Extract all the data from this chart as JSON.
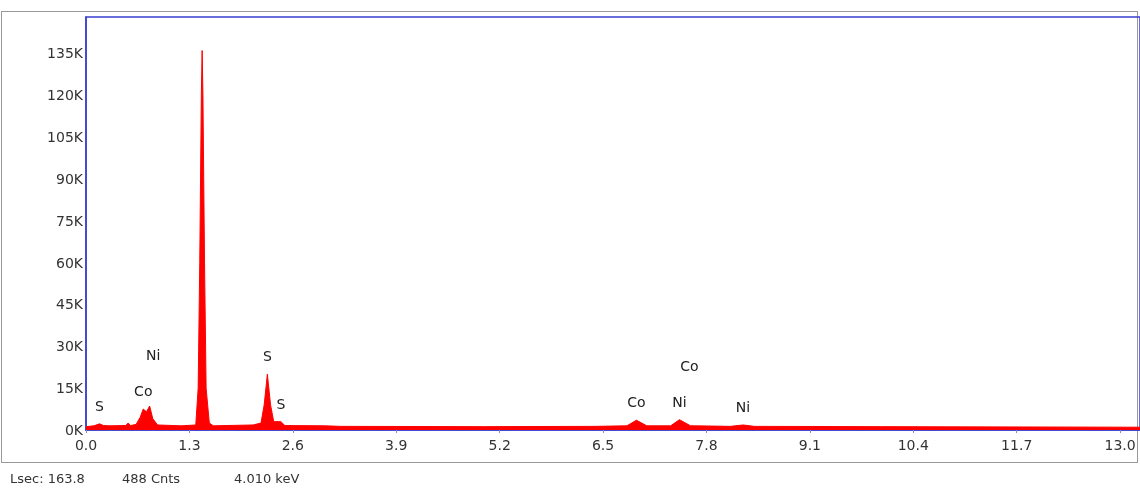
{
  "chart_data": {
    "type": "area",
    "x": [
      0.0,
      0.1,
      0.17,
      0.22,
      0.3,
      0.5,
      0.53,
      0.56,
      0.63,
      0.68,
      0.72,
      0.76,
      0.8,
      0.84,
      0.9,
      1.2,
      1.38,
      1.41,
      1.43,
      1.45,
      1.46,
      1.47,
      1.49,
      1.51,
      1.55,
      1.6,
      2.1,
      2.2,
      2.24,
      2.28,
      2.32,
      2.36,
      2.45,
      2.5,
      3.0,
      3.2,
      5.0,
      6.4,
      6.8,
      6.92,
      7.05,
      7.35,
      7.46,
      7.6,
      7.65,
      8.1,
      8.26,
      8.4,
      10.0,
      13.25
    ],
    "series": [
      {
        "color": "#ff0000",
        "values": [
          1200,
          1500,
          2200,
          1600,
          1500,
          1600,
          2500,
          1600,
          2000,
          4500,
          7500,
          6500,
          8600,
          4000,
          1800,
          1500,
          1800,
          15000,
          60000,
          120000,
          136000,
          120000,
          60000,
          15000,
          2500,
          1500,
          1800,
          2500,
          9000,
          20000,
          9000,
          3000,
          3000,
          1600,
          1500,
          1300,
          1200,
          1300,
          1500,
          3500,
          1500,
          1500,
          3700,
          1500,
          1500,
          1300,
          1800,
          1300,
          1200,
          1000
        ]
      }
    ],
    "xlim": [
      0,
      13.25
    ],
    "xticks": [
      {
        "value": 0,
        "label": "0.0"
      },
      1.3,
      2.6,
      3.9,
      5.2,
      6.5,
      7.8,
      9.1,
      10.4,
      11.7,
      {
        "value": 13,
        "label": "13.0"
      }
    ],
    "ylim": [
      0,
      148000
    ],
    "yticks": [
      {
        "value": 0,
        "label": "0K"
      },
      {
        "value": 15000,
        "label": "15K"
      },
      {
        "value": 30000,
        "label": "30K"
      },
      {
        "value": 45000,
        "label": "45K"
      },
      {
        "value": 60000,
        "label": "60K"
      },
      {
        "value": 75000,
        "label": "75K"
      },
      {
        "value": 90000,
        "label": "90K"
      },
      {
        "value": 105000,
        "label": "105K"
      },
      {
        "value": 120000,
        "label": "120K"
      },
      {
        "value": 135000,
        "label": "135K"
      }
    ],
    "grid": false,
    "annotations": [
      "Lsec: 163.8",
      "488 Cnts",
      "4.010 keV",
      {
        "text": "S",
        "x": 0.17,
        "y": 2200
      },
      {
        "text": "Co",
        "x": 0.72,
        "y": 7500
      },
      "Ni",
      {
        "text": "S",
        "x": 2.28,
        "y": 20000
      },
      {
        "text": "S",
        "x": 2.45,
        "y": 3000
      },
      {
        "text": "Co",
        "x": 6.92,
        "y": 3500
      },
      {
        "text": "Ni",
        "x": 7.46,
        "y": 3700
      },
      "Co",
      {
        "text": "Ni",
        "x": 8.26,
        "y": 1800
      }
    ]
  }
}
